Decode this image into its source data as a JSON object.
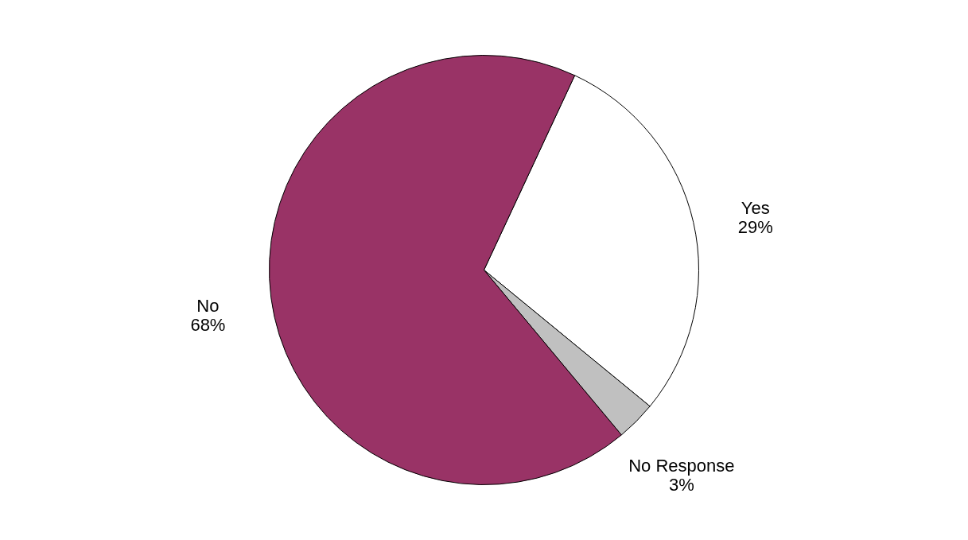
{
  "chart_data": {
    "type": "pie",
    "categories": [
      "Yes",
      "No Response",
      "No"
    ],
    "values": [
      29,
      3,
      68
    ],
    "colors": [
      "#ffffff",
      "#c0c0c0",
      "#993366"
    ],
    "value_labels": [
      "29%",
      "3%",
      "68%"
    ],
    "legend": false
  }
}
